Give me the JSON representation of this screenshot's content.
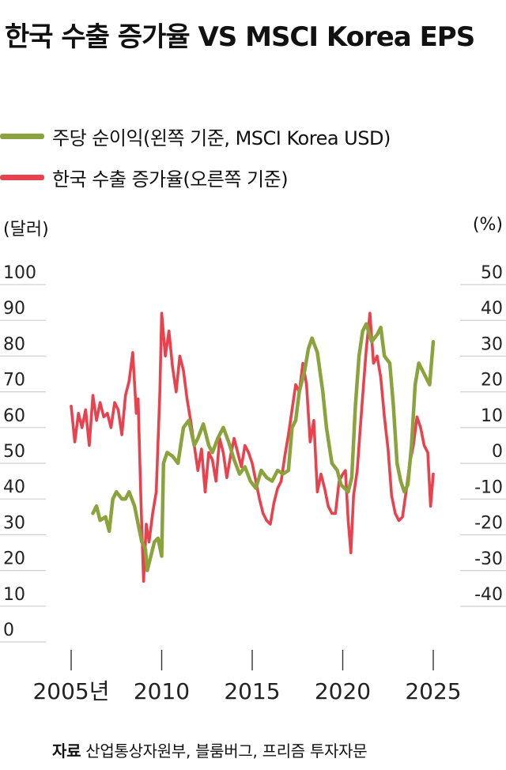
{
  "title": "한국 수출 증가율 VS MSCI Korea EPS",
  "legend": {
    "eps": "주당 순이익(왼쪽 기준, MSCI Korea USD)",
    "export": "한국 수출 증가율(오른쪽 기준)"
  },
  "units": {
    "left": "(달러)",
    "right": "(%)"
  },
  "source": {
    "label": "자료",
    "text": "산업통상자원부, 블룸버그, 프리즘 투자자문"
  },
  "colors": {
    "eps": "#8ba33c",
    "export": "#e8424f",
    "grid": "#cfcfcf"
  },
  "chart_data": {
    "type": "line",
    "xlim": [
      2004.3,
      2026.0
    ],
    "x_ticks": [
      2005,
      2010,
      2015,
      2020,
      2025
    ],
    "x_tick_labels": [
      "2005년",
      "2010",
      "2015",
      "2020",
      "2025"
    ],
    "y_left": {
      "ticks": [
        "100",
        "90",
        "80",
        "70",
        "60",
        "50",
        "40",
        "30",
        "20",
        "10",
        "0"
      ],
      "ylim": [
        0,
        100
      ]
    },
    "y_right": {
      "ticks": [
        "50",
        "40",
        "30",
        "20",
        "10",
        "0",
        "-10",
        "-20",
        "-30",
        "-40"
      ],
      "ylim": [
        -40,
        50
      ]
    },
    "series": [
      {
        "name": "주당 순이익(왼쪽 기준, MSCI Korea USD)",
        "axis": "left",
        "x": [
          2006.2,
          2006.4,
          2006.6,
          2006.9,
          2007.1,
          2007.3,
          2007.5,
          2007.8,
          2008.0,
          2008.2,
          2008.5,
          2008.7,
          2008.9,
          2009.1,
          2009.2,
          2009.4,
          2009.6,
          2009.8,
          2010.0,
          2010.1,
          2010.3,
          2010.6,
          2010.9,
          2011.2,
          2011.5,
          2011.8,
          2012.0,
          2012.3,
          2012.6,
          2012.8,
          2013.1,
          2013.4,
          2013.7,
          2014.0,
          2014.3,
          2014.6,
          2014.9,
          2015.2,
          2015.5,
          2015.8,
          2016.1,
          2016.4,
          2016.7,
          2017.0,
          2017.2,
          2017.4,
          2017.6,
          2017.9,
          2018.1,
          2018.3,
          2018.6,
          2018.9,
          2019.1,
          2019.4,
          2019.7,
          2019.9,
          2020.1,
          2020.3,
          2020.5,
          2020.7,
          2020.9,
          2021.1,
          2021.3,
          2021.6,
          2021.9,
          2022.1,
          2022.3,
          2022.6,
          2022.8,
          2023.0,
          2023.2,
          2023.4,
          2023.6,
          2023.8,
          2024.0,
          2024.2,
          2024.4,
          2024.6,
          2024.8,
          2025.0
        ],
        "y": [
          36,
          38,
          34,
          35,
          31,
          40,
          42,
          40,
          40,
          42,
          38,
          33,
          28,
          26,
          20,
          24,
          28,
          29,
          24,
          50,
          53,
          52,
          50,
          60,
          62,
          55,
          57,
          61,
          55,
          53,
          57,
          60,
          56,
          51,
          47,
          49,
          45,
          43,
          48,
          46,
          45,
          48,
          47,
          48,
          60,
          62,
          70,
          76,
          82,
          85,
          81,
          70,
          60,
          50,
          48,
          44,
          43,
          42,
          46,
          66,
          80,
          87,
          89,
          84,
          86,
          88,
          80,
          78,
          66,
          50,
          45,
          42,
          44,
          55,
          72,
          78,
          76,
          74,
          72,
          84
        ]
      },
      {
        "name": "한국 수출 증가율(오른쪽 기준)",
        "axis": "right",
        "x": [
          2005.0,
          2005.2,
          2005.4,
          2005.6,
          2005.8,
          2006.0,
          2006.2,
          2006.4,
          2006.6,
          2006.8,
          2007.0,
          2007.2,
          2007.4,
          2007.6,
          2007.8,
          2008.0,
          2008.2,
          2008.4,
          2008.6,
          2008.7,
          2008.85,
          2009.0,
          2009.15,
          2009.3,
          2009.5,
          2009.7,
          2009.9,
          2010.0,
          2010.2,
          2010.4,
          2010.6,
          2010.8,
          2011.0,
          2011.2,
          2011.4,
          2011.6,
          2011.8,
          2012.0,
          2012.2,
          2012.4,
          2012.6,
          2012.8,
          2013.0,
          2013.2,
          2013.4,
          2013.6,
          2013.8,
          2014.0,
          2014.2,
          2014.4,
          2014.6,
          2014.8,
          2015.0,
          2015.2,
          2015.4,
          2015.6,
          2015.8,
          2016.0,
          2016.2,
          2016.4,
          2016.6,
          2016.8,
          2017.0,
          2017.2,
          2017.4,
          2017.6,
          2017.8,
          2018.0,
          2018.2,
          2018.4,
          2018.6,
          2018.8,
          2019.0,
          2019.2,
          2019.4,
          2019.6,
          2019.8,
          2020.0,
          2020.15,
          2020.3,
          2020.45,
          2020.6,
          2020.8,
          2021.0,
          2021.15,
          2021.3,
          2021.5,
          2021.7,
          2021.9,
          2022.1,
          2022.3,
          2022.5,
          2022.7,
          2022.9,
          2023.1,
          2023.3,
          2023.5,
          2023.7,
          2023.9,
          2024.1,
          2024.3,
          2024.5,
          2024.7,
          2024.85,
          2025.0
        ],
        "y": [
          16,
          6,
          14,
          10,
          15,
          5,
          19,
          12,
          17,
          13,
          14,
          10,
          17,
          15,
          8,
          19,
          23,
          31,
          14,
          18,
          -10,
          -33,
          -17,
          -22,
          -14,
          -8,
          20,
          42,
          30,
          37,
          27,
          20,
          30,
          26,
          18,
          12,
          5,
          -2,
          4,
          -8,
          3,
          1,
          -5,
          7,
          3,
          -4,
          2,
          7,
          3,
          -1,
          5,
          3,
          0,
          -5,
          -10,
          -14,
          -16,
          -17,
          -11,
          -7,
          -5,
          2,
          8,
          15,
          22,
          20,
          28,
          22,
          6,
          12,
          -8,
          -3,
          -7,
          -12,
          -14,
          -14,
          -5,
          -3,
          -2,
          -16,
          -25,
          -9,
          -2,
          12,
          22,
          32,
          42,
          28,
          30,
          24,
          13,
          4,
          -9,
          -14,
          -16,
          -15,
          -8,
          0,
          5,
          13,
          10,
          5,
          3,
          -12,
          -3
        ]
      }
    ]
  }
}
